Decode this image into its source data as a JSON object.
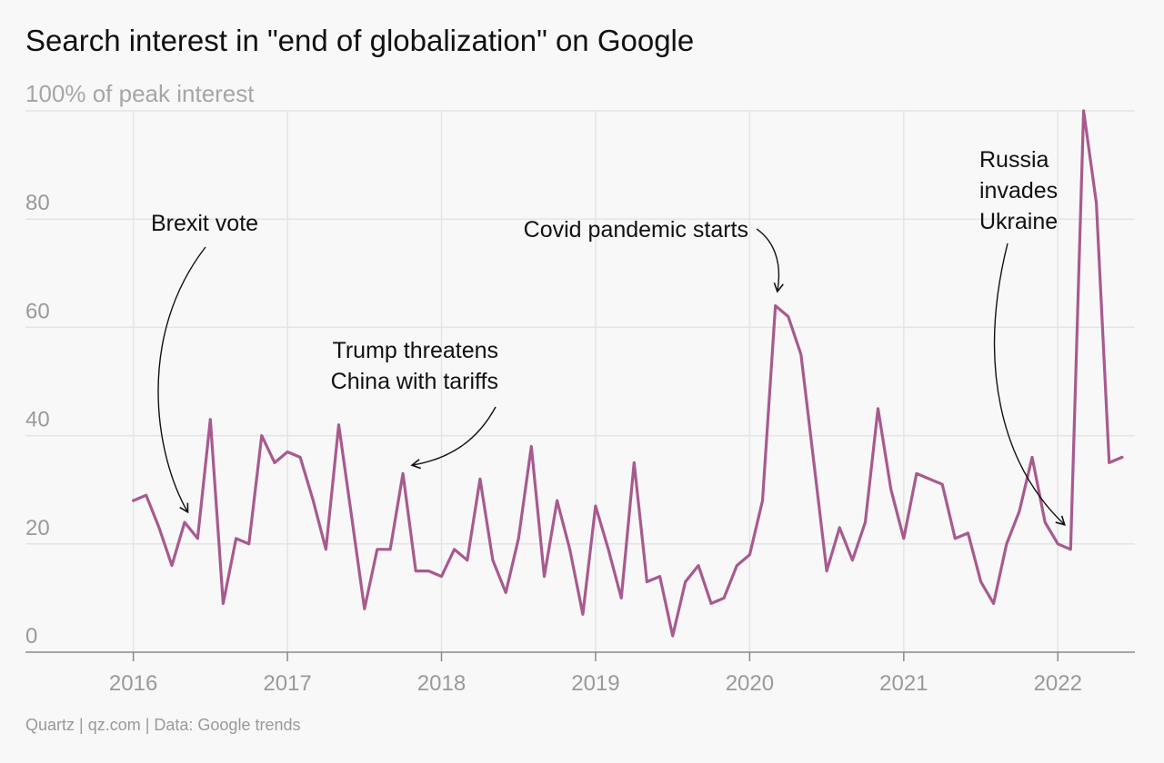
{
  "chart_data": {
    "type": "line",
    "title": "Search interest in \"end of globalization\" on Google",
    "ylabel": "100% of peak interest",
    "xlabel": "",
    "source": "Quartz | qz.com | Data: Google trends",
    "x_ticks": [
      "2016",
      "2017",
      "2018",
      "2019",
      "2020",
      "2021",
      "2022"
    ],
    "y_ticks": [
      "0",
      "20",
      "40",
      "60",
      "80"
    ],
    "ylim": [
      0,
      100
    ],
    "xlim": [
      2015.3,
      2022.5
    ],
    "grid": true,
    "legend": "none",
    "line_color": "#a85a8f",
    "series": [
      {
        "x": [
          2016.0,
          2016.083,
          2016.167,
          2016.25,
          2016.333,
          2016.417,
          2016.5,
          2016.583,
          2016.667,
          2016.75,
          2016.833,
          2016.917,
          2017.0,
          2017.083,
          2017.167,
          2017.25,
          2017.333,
          2017.417,
          2017.5,
          2017.583,
          2017.667,
          2017.75,
          2017.833,
          2017.917,
          2018.0,
          2018.083,
          2018.167,
          2018.25,
          2018.333,
          2018.417,
          2018.5,
          2018.583,
          2018.667,
          2018.75,
          2018.833,
          2018.917,
          2019.0,
          2019.083,
          2019.167,
          2019.25,
          2019.333,
          2019.417,
          2019.5,
          2019.583,
          2019.667,
          2019.75,
          2019.833,
          2019.917,
          2020.0,
          2020.083,
          2020.167,
          2020.25,
          2020.333,
          2020.417,
          2020.5,
          2020.583,
          2020.667,
          2020.75,
          2020.833,
          2020.917,
          2021.0,
          2021.083,
          2021.167,
          2021.25,
          2021.333,
          2021.417,
          2021.5,
          2021.583,
          2021.667,
          2021.75,
          2021.833,
          2021.917,
          2022.0,
          2022.083,
          2022.167,
          2022.25,
          2022.333,
          2022.417
        ],
        "values": [
          28,
          29,
          23,
          16,
          24,
          21,
          43,
          9,
          21,
          20,
          40,
          35,
          37,
          36,
          28,
          19,
          42,
          25,
          8,
          19,
          19,
          33,
          15,
          15,
          14,
          19,
          17,
          32,
          17,
          11,
          21,
          38,
          14,
          28,
          19,
          7,
          27,
          19,
          10,
          35,
          13,
          14,
          3,
          13,
          16,
          9,
          10,
          16,
          18,
          28,
          64,
          62,
          55,
          35,
          15,
          23,
          17,
          24,
          45,
          30,
          21,
          33,
          32,
          31,
          21,
          22,
          13,
          9,
          20,
          26,
          36,
          24,
          20,
          19,
          100,
          83,
          35,
          36
        ]
      }
    ],
    "annotations": [
      {
        "lines": [
          "Brexit vote"
        ],
        "x": 2016.333,
        "y": 24
      },
      {
        "lines": [
          "Trump threatens",
          "China with tariffs"
        ],
        "x": 2017.833,
        "y": 34
      },
      {
        "lines": [
          "Covid pandemic starts"
        ],
        "x": 2020.167,
        "y": 64
      },
      {
        "lines": [
          "Russia",
          "invades",
          "Ukraine"
        ],
        "x": 2022.083,
        "y": 23
      }
    ]
  }
}
